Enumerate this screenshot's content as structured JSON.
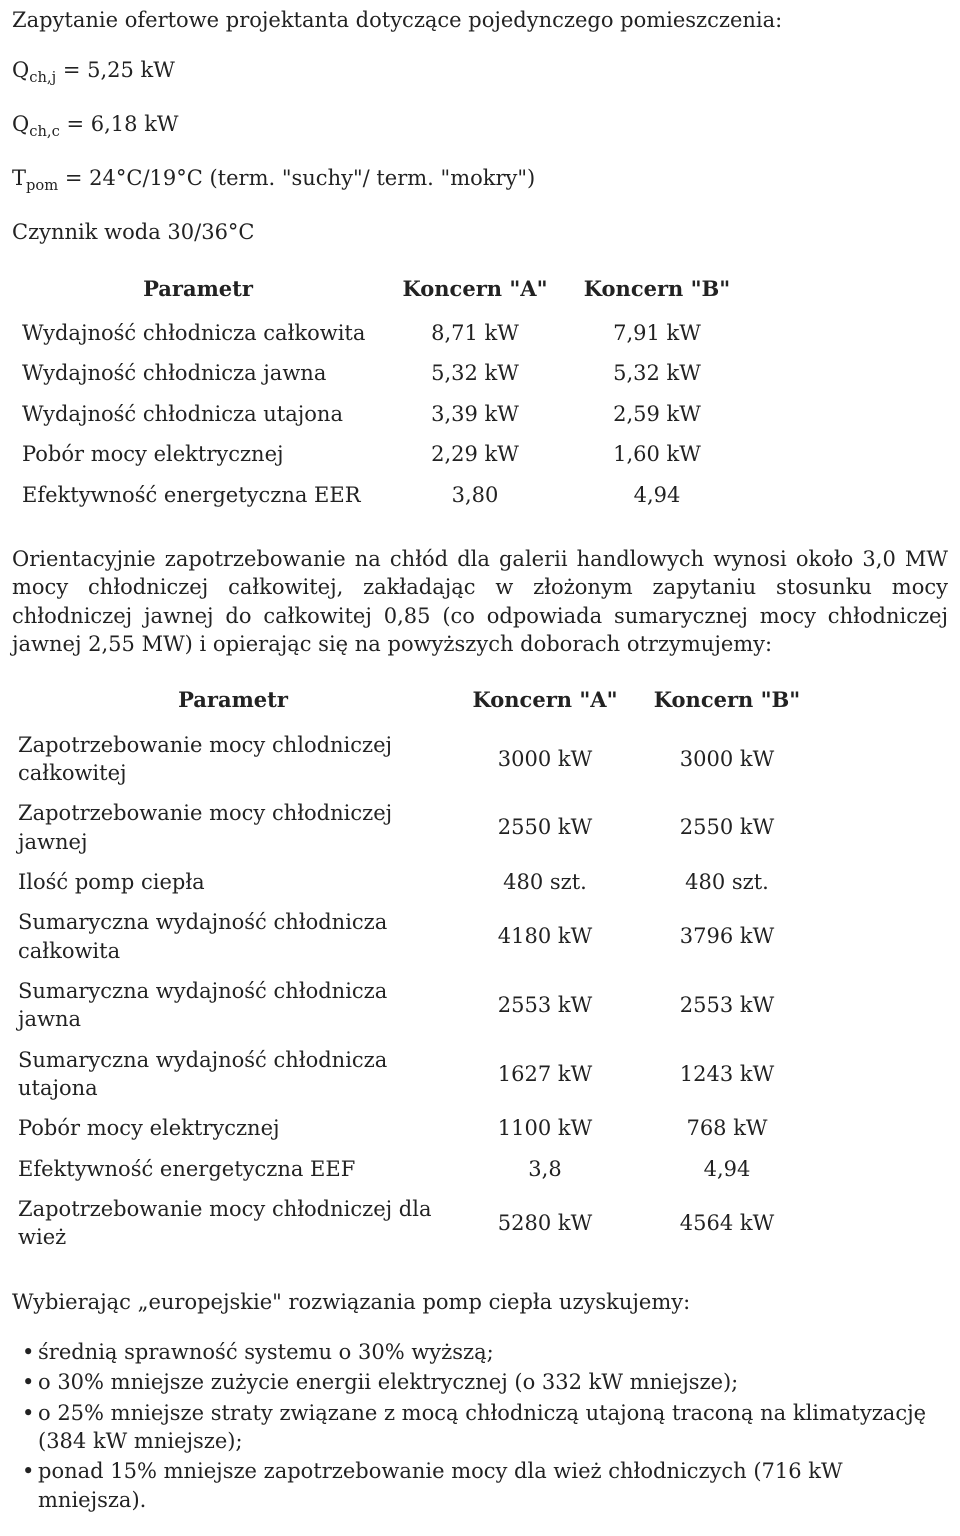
{
  "intro": {
    "line1": "Zapytanie ofertowe projektanta dotyczące pojedynczego pomieszczenia:",
    "q_chj_label_pre": "Q",
    "q_chj_sub": "ch,j",
    "q_chj_rest": " = 5,25 kW",
    "q_chc_label_pre": "Q",
    "q_chc_sub": "ch,c",
    "q_chc_rest": " = 6,18 kW",
    "tpom_pre": "T",
    "tpom_sub": "pom",
    "tpom_rest": " = 24°C/19°C (term. \"suchy\"/ term. \"mokry\")",
    "medium": "Czynnik woda 30/36°C"
  },
  "table1": {
    "headers": {
      "param": "Parametr",
      "a": "Koncern \"A\"",
      "b": "Koncern \"B\""
    },
    "rows": [
      {
        "label": "Wydajność chłodnicza całkowita",
        "a": "8,71 kW",
        "b": "7,91 kW"
      },
      {
        "label": "Wydajność chłodnicza jawna",
        "a": "5,32 kW",
        "b": "5,32 kW"
      },
      {
        "label": "Wydajność chłodnicza utajona",
        "a": "3,39 kW",
        "b": "2,59 kW"
      },
      {
        "label": "Pobór mocy elektrycznej",
        "a": "2,29 kW",
        "b": "1,60 kW"
      },
      {
        "label": "Efektywność energetyczna EER",
        "a": "3,80",
        "b": "4,94"
      }
    ]
  },
  "middle_para": "Orientacyjnie zapotrzebowanie na chłód dla galerii handlowych wynosi około 3,0 MW mocy chłodniczej całkowitej, zakładając w złożonym zapytaniu stosunku mocy chłodniczej jawnej do całkowitej 0,85 (co odpowiada sumarycznej mocy chłodniczej jawnej 2,55 MW) i opierając się na powyższych doborach otrzymujemy:",
  "table2": {
    "headers": {
      "param": "Parametr",
      "a": "Koncern \"A\"",
      "b": "Koncern \"B\""
    },
    "rows": [
      {
        "label": "Zapotrzebowanie mocy chlodniczej całkowitej",
        "a": "3000 kW",
        "b": "3000 kW"
      },
      {
        "label": "Zapotrzebowanie mocy chłodniczej jawnej",
        "a": "2550 kW",
        "b": "2550 kW"
      },
      {
        "label": "Ilość pomp ciepła",
        "a": "480 szt.",
        "b": "480 szt."
      },
      {
        "label": "Sumaryczna wydajność chłodnicza całkowita",
        "a": "4180 kW",
        "b": "3796 kW"
      },
      {
        "label": "Sumaryczna wydajność chłodnicza jawna",
        "a": "2553 kW",
        "b": "2553 kW"
      },
      {
        "label": "Sumaryczna wydajność chłodnicza utajona",
        "a": "1627 kW",
        "b": "1243 kW"
      },
      {
        "label": "Pobór mocy elektrycznej",
        "a": "1100 kW",
        "b": "768 kW"
      },
      {
        "label": "Efektywność energetyczna EEF",
        "a": "3,8",
        "b": "4,94"
      },
      {
        "label": "Zapotrzebowanie mocy chłodniczej dla wież",
        "a": "5280 kW",
        "b": "4564 kW"
      }
    ]
  },
  "conclusion_intro": "Wybierając „europejskie\" rozwiązania pomp ciepła uzyskujemy:",
  "bullets": [
    "średnią sprawność systemu o 30% wyższą;",
    "o 30% mniejsze zużycie energii elektrycznej (o 332 kW mniejsze);",
    "o 25% mniejsze straty związane z mocą chłodniczą utajoną traconą na klimatyzację (384 kW mniejsze);",
    "ponad 15% mniejsze zapotrzebowanie mocy dla wież chłodniczych (716 kW mniejsza)."
  ]
}
